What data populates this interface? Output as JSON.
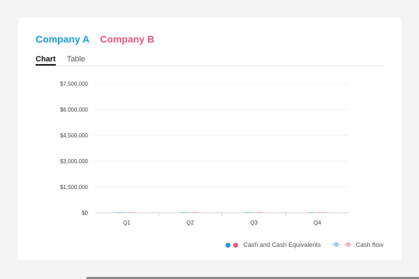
{
  "companies": [
    {
      "label": "Company A",
      "color": "#1a9ad6"
    },
    {
      "label": "Company B",
      "color": "#e8577c"
    }
  ],
  "tabs": [
    {
      "label": "Chart",
      "active": true
    },
    {
      "label": "Table",
      "active": false
    }
  ],
  "legend": {
    "bars_label": "Cash and Cash Equivalents",
    "line_label": "Cash flow",
    "colors": {
      "a": "#1a9ad6",
      "b": "#e8577c",
      "a_light": "#9fcfee",
      "b_light": "#f3b3c2"
    }
  },
  "chart_data": {
    "type": "bar",
    "categories": [
      "Q1",
      "Q2",
      "Q3",
      "Q4"
    ],
    "yticks": [
      "$0",
      "$1,500,000",
      "$3,000,000",
      "$4,500,000",
      "$6,000,000",
      "$7,500,000"
    ],
    "ylim": [
      0,
      7500000
    ],
    "series": [
      {
        "name": "Company A",
        "values": [
          0,
          0,
          0,
          0
        ]
      },
      {
        "name": "Company B",
        "values": [
          0,
          0,
          0,
          0
        ]
      }
    ],
    "grid": true,
    "legend_position": "bottom-right"
  }
}
